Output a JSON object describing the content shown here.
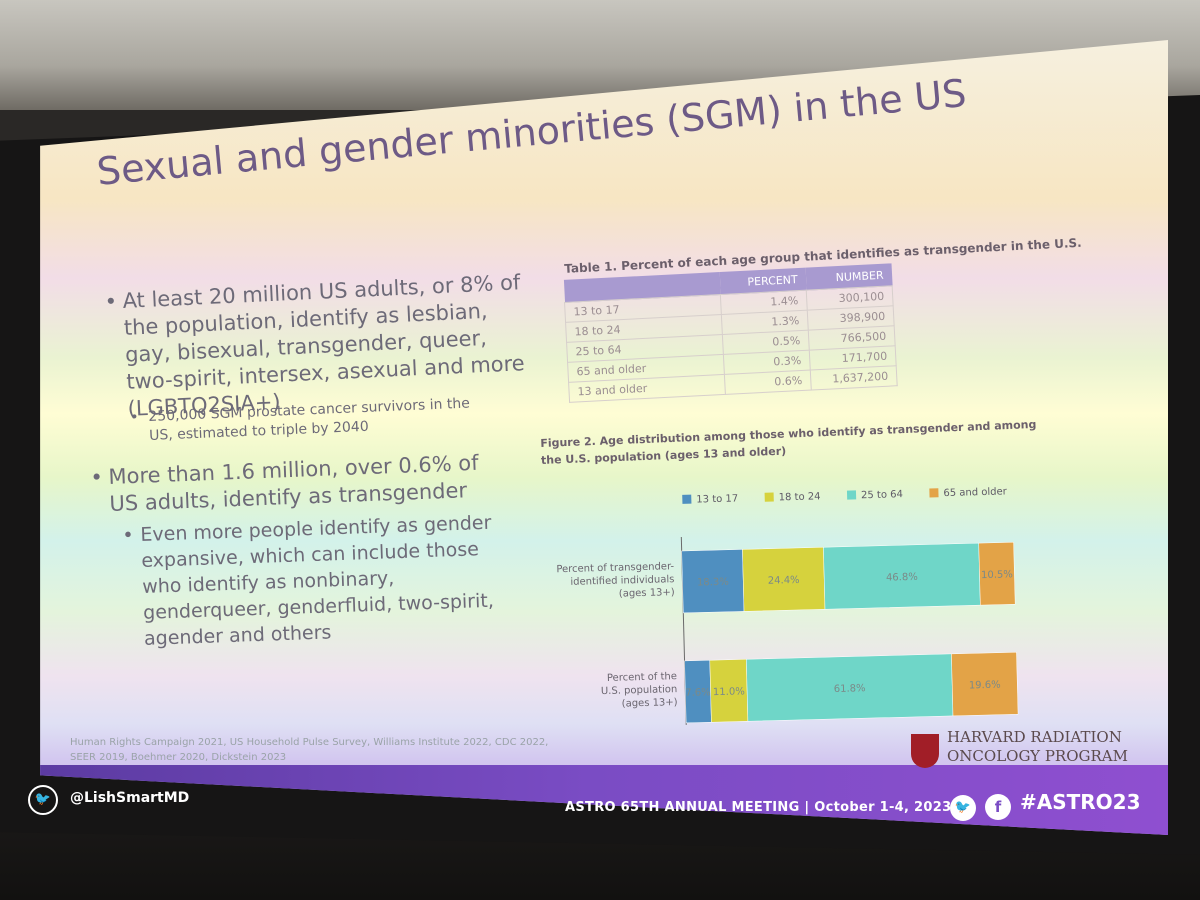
{
  "slide": {
    "title": "Sexual and gender minorities (SGM) in the US",
    "bullets": [
      {
        "text": "At least 20 million US adults, or 8% of the population, identify as lesbian, gay, bisexual, transgender, queer, two-spirit, intersex, asexual and more (LGBTQ2SIA+)",
        "sub": "250,000 SGM prostate cancer survivors in the US, estimated to triple by 2040"
      },
      {
        "text": "More than 1.6 million, over 0.6% of US adults, identify as transgender",
        "sub": "Even more people identify as gender expansive, which can include those who identify as nonbinary, genderqueer, genderfluid, two-spirit, agender and others"
      }
    ],
    "bullet_glyph": "•",
    "table": {
      "caption": "Table 1. Percent of each age group that identifies as transgender in the U.S.",
      "headers": [
        "",
        "PERCENT",
        "NUMBER"
      ],
      "rows": [
        [
          "13 to 17",
          "1.4%",
          "300,100"
        ],
        [
          "18 to 24",
          "1.3%",
          "398,900"
        ],
        [
          "25 to 64",
          "0.5%",
          "766,500"
        ],
        [
          "65 and older",
          "0.3%",
          "171,700"
        ],
        [
          "13 and older",
          "0.6%",
          "1,637,200"
        ]
      ]
    },
    "figure_caption": "Figure 2. Age distribution among those who identify as transgender and among the U.S. population (ages 13 and older)",
    "references": "Human Rights Campaign 2021, US Household Pulse Survey, Williams Institute 2022, CDC 2022, SEER 2019, Boehmer 2020, Dickstein 2023",
    "logo": {
      "line1": "HARVARD RADIATION",
      "line2": "ONCOLOGY PROGRAM"
    }
  },
  "chart_data": {
    "type": "bar",
    "orientation": "horizontal",
    "stacked": true,
    "title": "Figure 2. Age distribution among those who identify as transgender and among the U.S. population (ages 13 and older)",
    "categories": [
      "Percent of transgender-identified individuals (ages 13+)",
      "Percent of the U.S. population (ages 13+)"
    ],
    "category_lines": [
      [
        "Percent of transgender-",
        "identified individuals",
        "(ages 13+)"
      ],
      [
        "Percent of the",
        "U.S. population",
        "(ages 13+)"
      ]
    ],
    "series": [
      {
        "name": "13 to 17",
        "values": [
          18.3,
          7.6
        ],
        "labels": [
          "18.3%",
          "7.6%"
        ],
        "color": "#4f8fc0"
      },
      {
        "name": "18 to 24",
        "values": [
          24.4,
          11.0
        ],
        "labels": [
          "24.4%",
          "11.0%"
        ],
        "color": "#d6d23d"
      },
      {
        "name": "25 to 64",
        "values": [
          46.8,
          61.8
        ],
        "labels": [
          "46.8%",
          "61.8%"
        ],
        "color": "#6fd6c8"
      },
      {
        "name": "65 and older",
        "values": [
          10.5,
          19.6
        ],
        "labels": [
          "10.5%",
          "19.6%"
        ],
        "color": "#e3a347"
      }
    ],
    "xlim": [
      0,
      100
    ],
    "legend_position": "top"
  },
  "footer": {
    "twitter_glyph": "🐦",
    "handle": "@LishSmartMD",
    "meeting": "ASTRO 65TH ANNUAL MEETING  |  October 1-4, 2023",
    "facebook_glyph": "f",
    "hashtag": "#ASTRO23"
  },
  "colors": {
    "title": "#6d5a86",
    "footer_bar": "#7a4cc4",
    "table_header": "#a89ad0",
    "harvard_red": "#a11e27"
  }
}
